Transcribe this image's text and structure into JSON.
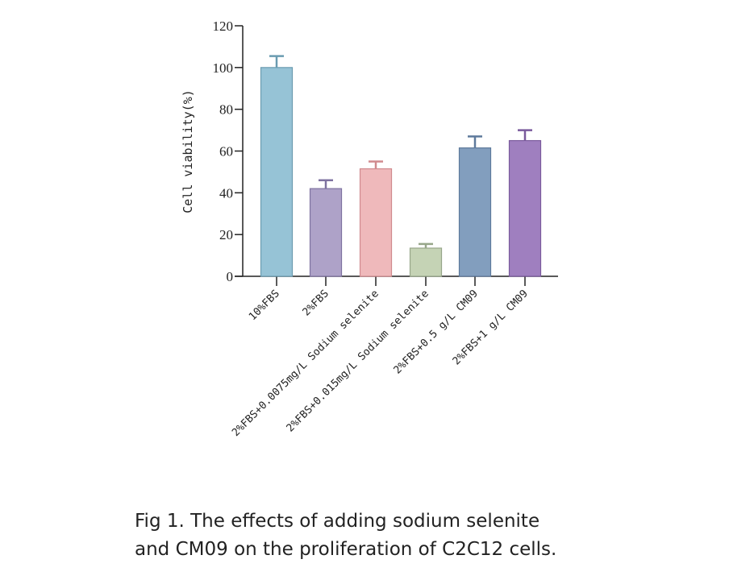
{
  "chart_data": {
    "type": "bar",
    "title": "",
    "ylabel": "Cell viability(%)",
    "xlabel": "",
    "ylim": [
      0,
      120
    ],
    "yticks": [
      0,
      20,
      40,
      60,
      80,
      100,
      120
    ],
    "grid": false,
    "categories": [
      "10%FBS",
      "2%FBS",
      "2%FBS+0.0075mg/L Sodium selenite",
      "2%FBS+0.015mg/L Sodium selenite",
      "2%FBS+0.5 g/L CM09",
      "2%FBS+1 g/L CM09"
    ],
    "values": [
      100,
      42,
      51.5,
      13.5,
      61.5,
      65
    ],
    "error_upper": [
      105.5,
      46,
      55,
      15.5,
      67,
      70
    ],
    "colors": [
      "#96c3d6",
      "#aea2c8",
      "#efb9bb",
      "#c5d3b5",
      "#829ebe",
      "#9f7fbf"
    ],
    "edge_colors": [
      "#6a9bb0",
      "#7e72a0",
      "#d08a8e",
      "#97a68a",
      "#5e7a9c",
      "#7a5a9c"
    ]
  },
  "caption": {
    "line1": "Fig 1. The effects of adding sodium selenite",
    "line2": "and CM09 on the proliferation of C2C12 cells."
  }
}
